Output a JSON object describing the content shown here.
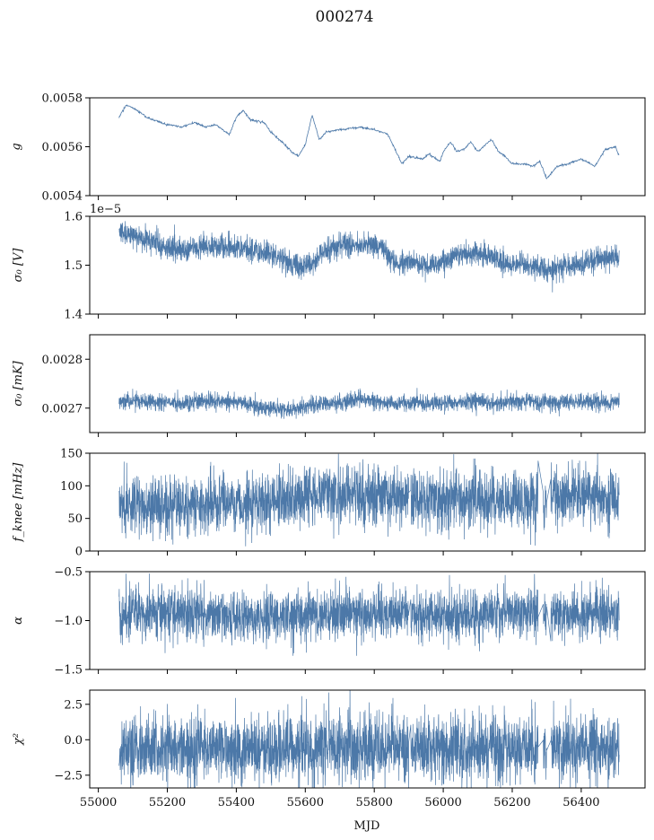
{
  "figure": {
    "title": "000274",
    "xlabel": "MJD",
    "line_color": "#4c78a8"
  },
  "chart_data": [
    {
      "type": "line",
      "ylabel": "g",
      "ylim": [
        0.0054,
        0.0058
      ],
      "yticks": [
        0.0054,
        0.0056,
        0.0058
      ],
      "ytick_labels": [
        "0.0054",
        "0.0056",
        "0.0058"
      ],
      "xlim": [
        54975,
        56585
      ],
      "x_range": [
        55060,
        56510
      ],
      "offset_text": "",
      "series": [
        {
          "x": [
            55060,
            55080,
            55100,
            55140,
            55180,
            55200,
            55240,
            55280,
            55310,
            55340,
            55360,
            55380,
            55400,
            55420,
            55440,
            55480,
            55500,
            55540,
            55560,
            55580,
            55600,
            55620,
            55640,
            55660,
            55700,
            55760,
            55800,
            55840,
            55860,
            55880,
            55900,
            55940,
            55960,
            55990,
            56000,
            56020,
            56040,
            56060,
            56080,
            56100,
            56140,
            56160,
            56180,
            56200,
            56240,
            56260,
            56280,
            56300,
            56330,
            56360,
            56400,
            56440,
            56470,
            56500,
            56510
          ],
          "y": [
            0.00572,
            0.00577,
            0.00576,
            0.00572,
            0.0057,
            0.00569,
            0.00568,
            0.0057,
            0.00568,
            0.00569,
            0.00567,
            0.00565,
            0.00572,
            0.00575,
            0.00571,
            0.0057,
            0.00566,
            0.00561,
            0.00558,
            0.00556,
            0.00561,
            0.00573,
            0.00563,
            0.00566,
            0.00567,
            0.00568,
            0.00567,
            0.00565,
            0.00559,
            0.00553,
            0.00556,
            0.00555,
            0.00557,
            0.00554,
            0.00558,
            0.00562,
            0.00558,
            0.00559,
            0.00562,
            0.00558,
            0.00563,
            0.00558,
            0.00556,
            0.00553,
            0.00553,
            0.00552,
            0.00554,
            0.00547,
            0.00552,
            0.00553,
            0.00555,
            0.00552,
            0.00559,
            0.0056,
            0.00556
          ],
          "noise": 3.5e-06
        }
      ]
    },
    {
      "type": "line",
      "ylabel": "σ₀ [V]",
      "ylim": [
        1.4,
        1.6
      ],
      "yticks": [
        1.4,
        1.5,
        1.6
      ],
      "ytick_labels": [
        "1.4",
        "1.5",
        "1.6"
      ],
      "xlim": [
        54975,
        56585
      ],
      "x_range": [
        55060,
        56510
      ],
      "offset_text": "1e−5",
      "series": [
        {
          "x": [
            55060,
            55100,
            55150,
            55200,
            55250,
            55300,
            55350,
            55400,
            55450,
            55500,
            55540,
            55580,
            55620,
            55660,
            55700,
            55760,
            55820,
            55860,
            55900,
            55950,
            56000,
            56040,
            56080,
            56120,
            56160,
            56200,
            56250,
            56300,
            56350,
            56400,
            56450,
            56510
          ],
          "y": [
            1.57,
            1.56,
            1.55,
            1.535,
            1.53,
            1.54,
            1.54,
            1.535,
            1.53,
            1.52,
            1.51,
            1.495,
            1.505,
            1.53,
            1.54,
            1.54,
            1.54,
            1.5,
            1.51,
            1.5,
            1.505,
            1.52,
            1.525,
            1.52,
            1.51,
            1.5,
            1.5,
            1.49,
            1.495,
            1.5,
            1.515,
            1.515
          ],
          "noise": 0.012
        }
      ]
    },
    {
      "type": "line",
      "ylabel": "σ₀ [mK]",
      "ylim": [
        0.00265,
        0.00285
      ],
      "yticks": [
        0.0027,
        0.0028
      ],
      "ytick_labels": [
        "0.0027",
        "0.0028"
      ],
      "xlim": [
        54975,
        56585
      ],
      "x_range": [
        55060,
        56510
      ],
      "offset_text": "",
      "series": [
        {
          "x": [
            55060,
            55150,
            55250,
            55350,
            55420,
            55480,
            55560,
            55620,
            55680,
            55760,
            55840,
            55900,
            56000,
            56080,
            56160,
            56240,
            56320,
            56400,
            56510
          ],
          "y": [
            0.002715,
            0.002715,
            0.00271,
            0.002715,
            0.00271,
            0.0027,
            0.002695,
            0.002705,
            0.00271,
            0.00272,
            0.00271,
            0.00271,
            0.00271,
            0.002715,
            0.00271,
            0.002715,
            0.00271,
            0.002715,
            0.00271
          ],
          "noise": 8.5e-06
        }
      ]
    },
    {
      "type": "line",
      "ylabel": "f_knee [mHz]",
      "ylim": [
        0,
        150
      ],
      "yticks": [
        0,
        50,
        100,
        150
      ],
      "ytick_labels": [
        "0",
        "50",
        "100",
        "150"
      ],
      "xlim": [
        54975,
        56585
      ],
      "x_range": [
        55060,
        56510
      ],
      "offset_text": "",
      "series": [
        {
          "x": [
            55060,
            55200,
            55400,
            55500,
            55600,
            55700,
            55800,
            55900,
            56000,
            56100,
            56200,
            56280,
            56320,
            56400,
            56510
          ],
          "y": [
            70,
            70,
            72,
            78,
            85,
            85,
            85,
            82,
            80,
            80,
            75,
            70,
            85,
            85,
            80
          ],
          "noise": 22
        }
      ]
    },
    {
      "type": "line",
      "ylabel": "α",
      "ylim": [
        -1.5,
        -0.5
      ],
      "yticks": [
        -1.5,
        -1.0,
        -0.5
      ],
      "ytick_labels": [
        "−1.5",
        "−1.0",
        "−0.5"
      ],
      "xlim": [
        54975,
        56585
      ],
      "x_range": [
        55060,
        56510
      ],
      "offset_text": "",
      "series": [
        {
          "x": [
            55060,
            55200,
            55400,
            55500,
            55600,
            55700,
            55800,
            55900,
            56000,
            56100,
            56200,
            56300,
            56400,
            56510
          ],
          "y": [
            -0.93,
            -0.92,
            -0.95,
            -0.98,
            -0.95,
            -0.92,
            -0.93,
            -0.95,
            -0.95,
            -0.97,
            -0.9,
            -0.95,
            -0.92,
            -0.93
          ],
          "noise": 0.13
        }
      ]
    },
    {
      "type": "line",
      "ylabel": "χ²",
      "ylim": [
        -3.4,
        3.5
      ],
      "yticks": [
        -2.5,
        0.0,
        2.5
      ],
      "ytick_labels": [
        "−2.5",
        "0.0",
        "2.5"
      ],
      "xlim": [
        54975,
        56585
      ],
      "x_range": [
        55060,
        56510
      ],
      "xticks": [
        55000,
        55200,
        55400,
        55600,
        55800,
        56000,
        56200,
        56400
      ],
      "xtick_labels": [
        "55000",
        "55200",
        "55400",
        "55600",
        "55800",
        "56000",
        "56200",
        "56400"
      ],
      "offset_text": "",
      "series": [
        {
          "x": [
            55060,
            56510
          ],
          "y": [
            -0.6,
            -0.6
          ],
          "noise": 1.2
        }
      ]
    }
  ]
}
